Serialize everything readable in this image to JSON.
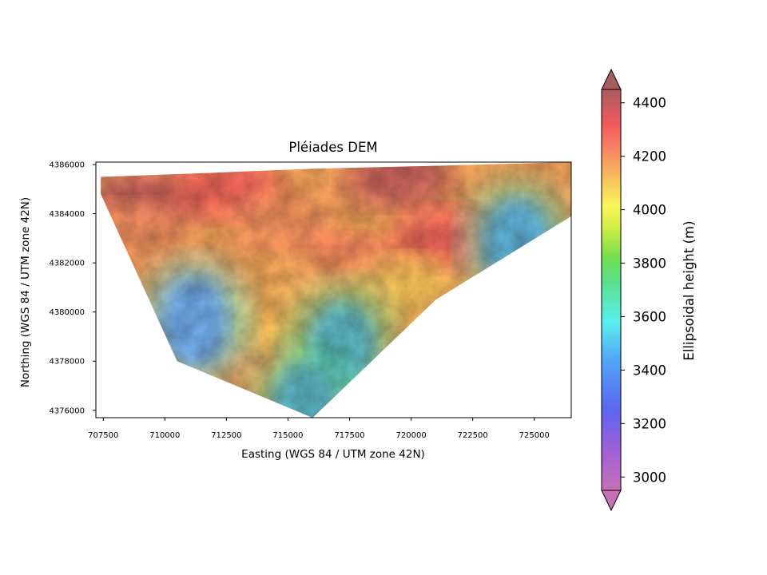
{
  "chart_data": {
    "type": "heatmap",
    "title": "Pléiades DEM",
    "xlabel": "Easting (WGS 84 / UTM zone 42N)",
    "ylabel": "Northing (WGS 84 / UTM zone 42N)",
    "xlim": [
      707200,
      726500
    ],
    "ylim": [
      4375700,
      4386100
    ],
    "xticks": [
      707500,
      710000,
      712500,
      715000,
      717500,
      720000,
      722500,
      725000
    ],
    "yticks": [
      4376000,
      4378000,
      4380000,
      4382000,
      4384000,
      4386000
    ],
    "grid": false,
    "colorbar": {
      "label": "Ellipsoidal height (m)",
      "min": 2950,
      "max": 4450,
      "extend": "both",
      "ticks": [
        3000,
        3200,
        3400,
        3600,
        3800,
        4000,
        4200,
        4400
      ],
      "colormap": "gist_rainbow_r with hillshade, alpha 0.6"
    },
    "data_footprint": [
      [
        707400,
        4385500
      ],
      [
        711000,
        4385630
      ],
      [
        716000,
        4385830
      ],
      [
        721000,
        4385950
      ],
      [
        726500,
        4386100
      ],
      [
        726500,
        4383900
      ],
      [
        721000,
        4380500
      ],
      [
        716000,
        4375700
      ],
      [
        714200,
        4376450
      ],
      [
        710500,
        4378000
      ],
      [
        707400,
        4384800
      ]
    ],
    "low_valleys": [
      {
        "x": 711200,
        "y": 4379600,
        "z": 3150
      },
      {
        "x": 717200,
        "y": 4378600,
        "z": 3300
      },
      {
        "x": 724300,
        "y": 4382800,
        "z": 3250
      },
      {
        "x": 715700,
        "y": 4376100,
        "z": 3300
      }
    ],
    "high_ridges": [
      {
        "x": 709000,
        "y": 4384500,
        "z": 4400
      },
      {
        "x": 712500,
        "y": 4385000,
        "z": 4300
      },
      {
        "x": 714800,
        "y": 4383500,
        "z": 4200
      },
      {
        "x": 719500,
        "y": 4385500,
        "z": 4400
      },
      {
        "x": 717500,
        "y": 4381800,
        "z": 4250
      },
      {
        "x": 721500,
        "y": 4383000,
        "z": 4300
      },
      {
        "x": 713500,
        "y": 4379800,
        "z": 4100
      },
      {
        "x": 715200,
        "y": 4381000,
        "z": 4150
      },
      {
        "x": 708300,
        "y": 4383200,
        "z": 4200
      },
      {
        "x": 719500,
        "y": 4381000,
        "z": 4100
      }
    ]
  }
}
